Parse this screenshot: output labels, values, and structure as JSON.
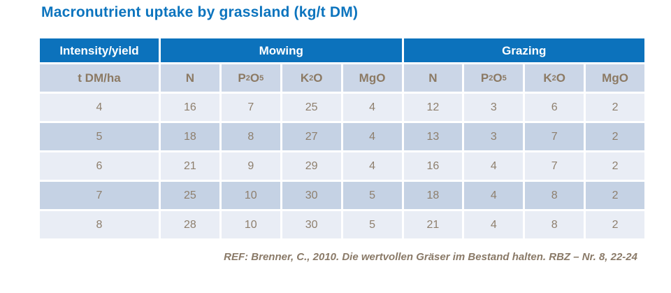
{
  "title": "Macronutrient uptake by grassland (kg/t DM)",
  "table": {
    "groups": {
      "intensity": "Intensity/yield",
      "mowing": "Mowing",
      "grazing": "Grazing"
    },
    "columns": {
      "yield": "t DM/ha",
      "nutrients": [
        "N",
        "P2O5",
        "K2O",
        "MgO"
      ]
    },
    "rows": [
      {
        "yield": "4",
        "mowing": [
          "16",
          "7",
          "25",
          "4"
        ],
        "grazing": [
          "12",
          "3",
          "6",
          "2"
        ]
      },
      {
        "yield": "5",
        "mowing": [
          "18",
          "8",
          "27",
          "4"
        ],
        "grazing": [
          "13",
          "3",
          "7",
          "2"
        ]
      },
      {
        "yield": "6",
        "mowing": [
          "21",
          "9",
          "29",
          "4"
        ],
        "grazing": [
          "16",
          "4",
          "7",
          "2"
        ]
      },
      {
        "yield": "7",
        "mowing": [
          "25",
          "10",
          "30",
          "5"
        ],
        "grazing": [
          "18",
          "4",
          "8",
          "2"
        ]
      },
      {
        "yield": "8",
        "mowing": [
          "28",
          "10",
          "30",
          "5"
        ],
        "grazing": [
          "21",
          "4",
          "8",
          "2"
        ]
      }
    ]
  },
  "footer": {
    "reference": "REF: Brenner, C., 2010. Die wertvollen Gräser im Bestand halten. RBZ – Nr. 8, 22-24"
  },
  "colors": {
    "header_blue": "#0C72BC",
    "subheader_bg": "#CBD6E7",
    "row_light": "#E9EDF5",
    "row_dark": "#C5D2E4",
    "text_brown": "#8C7A64",
    "title_blue": "#0C74BE"
  },
  "chart_data": {
    "type": "table",
    "title": "Macronutrient uptake by grassland (kg/t DM)",
    "row_axis_label": "Intensity/yield (t DM/ha)",
    "column_groups": [
      "Mowing",
      "Grazing"
    ],
    "categories": [
      4,
      5,
      6,
      7,
      8
    ],
    "series": [
      {
        "name": "Mowing N",
        "values": [
          16,
          18,
          21,
          25,
          28
        ]
      },
      {
        "name": "Mowing P2O5",
        "values": [
          7,
          8,
          9,
          10,
          10
        ]
      },
      {
        "name": "Mowing K2O",
        "values": [
          25,
          27,
          29,
          30,
          30
        ]
      },
      {
        "name": "Mowing MgO",
        "values": [
          4,
          4,
          4,
          5,
          5
        ]
      },
      {
        "name": "Grazing N",
        "values": [
          12,
          13,
          16,
          18,
          21
        ]
      },
      {
        "name": "Grazing P2O5",
        "values": [
          3,
          3,
          4,
          4,
          4
        ]
      },
      {
        "name": "Grazing K2O",
        "values": [
          6,
          7,
          7,
          8,
          8
        ]
      },
      {
        "name": "Grazing MgO",
        "values": [
          2,
          2,
          2,
          2,
          2
        ]
      }
    ]
  }
}
